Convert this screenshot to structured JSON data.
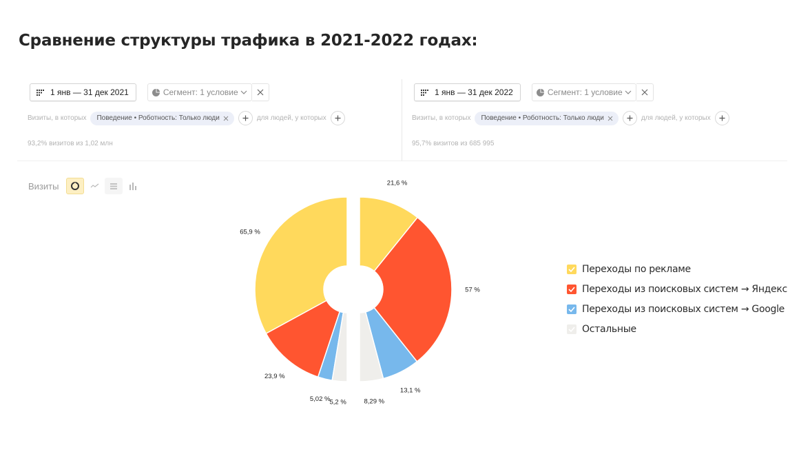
{
  "page": {
    "title": "Сравнение структуры трафика в 2021-2022 годах:"
  },
  "left_panel": {
    "date_range": "1 янв — 31 дек 2021",
    "segment_label": "Сегмент: 1 условие",
    "filter_prefix": "Визиты, в которых",
    "filter_tag": "Поведение • Роботность: Только люди",
    "people_filter": "для людей, у которых",
    "visits_share": "93,2% визитов из 1,02 млн"
  },
  "right_panel": {
    "date_range": "1 янв — 31 дек 2022",
    "segment_label": "Сегмент: 1 условие",
    "filter_prefix": "Визиты, в которых",
    "filter_tag": "Поведение • Роботность: Только люди",
    "people_filter": "для людей, у которых",
    "visits_share": "95,7% визитов из 685 995"
  },
  "toolbar": {
    "metric_label": "Визиты",
    "icons": [
      "pie-chart-icon",
      "line-chart-icon",
      "stacked-bar-icon",
      "bar-chart-icon"
    ]
  },
  "legend": [
    {
      "label": "Переходы по рекламе",
      "color": "#FFD95C"
    },
    {
      "label": "Переходы из поисковых систем → Яндекс",
      "color": "#FF5530"
    },
    {
      "label": "Переходы из поисковых систем → Google",
      "color": "#77B8EC"
    },
    {
      "label": "Остальные",
      "color": "#EFEEEB"
    }
  ],
  "chart_data": {
    "type": "pie",
    "variant": "split-donut-comparison",
    "categories": [
      "Переходы по рекламе",
      "Переходы из поисковых систем → Яндекс",
      "Переходы из поисковых систем → Google",
      "Остальные"
    ],
    "colors": [
      "#FFD95C",
      "#FF5530",
      "#77B8EC",
      "#EFEEEB"
    ],
    "series": [
      {
        "name": "1 янв — 31 дек 2021",
        "side": "left",
        "values": [
          65.9,
          23.9,
          5.02,
          5.2
        ],
        "labels": [
          "65,9 %",
          "23,9 %",
          "5,02 %",
          "5,2 %"
        ]
      },
      {
        "name": "1 янв — 31 дек 2022",
        "side": "right",
        "values": [
          21.6,
          57,
          13.1,
          8.29
        ],
        "labels": [
          "21,6 %",
          "57 %",
          "13,1 %",
          "8,29 %"
        ]
      }
    ]
  }
}
